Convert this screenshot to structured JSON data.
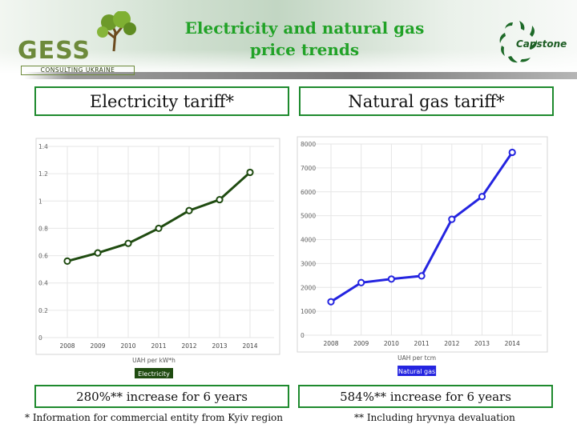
{
  "header": {
    "title_line1": "Electricity and natural gas",
    "title_line2": "price trends",
    "logo_left": "GESS",
    "logo_left_sub": "CONSULTING UKRAINE",
    "logo_right": "Capstone"
  },
  "electricity": {
    "heading": "Electricity tariff*",
    "footer": "280%** increase for 6 years"
  },
  "gas": {
    "heading": "Natural gas tariff*",
    "footer": "584%** increase for 6 years"
  },
  "notes": {
    "left": "* Information for commercial entity from Kyiv region",
    "right": "** Including hryvnya devaluation"
  },
  "colors": {
    "title": "#21a227",
    "box_border": "#1e8a2e",
    "electricity_series": "#1f4b10",
    "gas_series": "#2424e0"
  },
  "chart_data": [
    {
      "type": "line",
      "x": [
        "2008",
        "2009",
        "2010",
        "2011",
        "2012",
        "2013",
        "2014"
      ],
      "series": [
        {
          "name": "Electricity",
          "values": [
            0.56,
            0.62,
            0.69,
            0.8,
            0.93,
            1.01,
            1.21
          ]
        }
      ],
      "yticks": [
        "0",
        "0.2",
        "0.4",
        "0.6",
        "0.8",
        "1",
        "1.2",
        "1.4"
      ],
      "ylim": [
        0,
        1.4
      ],
      "xlabel": "UAH per kW*h",
      "legend": "bottom",
      "grid": true
    },
    {
      "type": "line",
      "x": [
        "2008",
        "2009",
        "2010",
        "2011",
        "2012",
        "2013",
        "2014"
      ],
      "series": [
        {
          "name": "Natural gas",
          "values": [
            1400,
            2200,
            2350,
            2480,
            4850,
            5800,
            7650
          ]
        }
      ],
      "yticks": [
        "0",
        "1000",
        "2000",
        "3000",
        "4000",
        "5000",
        "6000",
        "7000",
        "8000"
      ],
      "ylim": [
        0,
        8000
      ],
      "xlabel": "UAH per tcm",
      "legend": "bottom",
      "grid": true
    }
  ]
}
